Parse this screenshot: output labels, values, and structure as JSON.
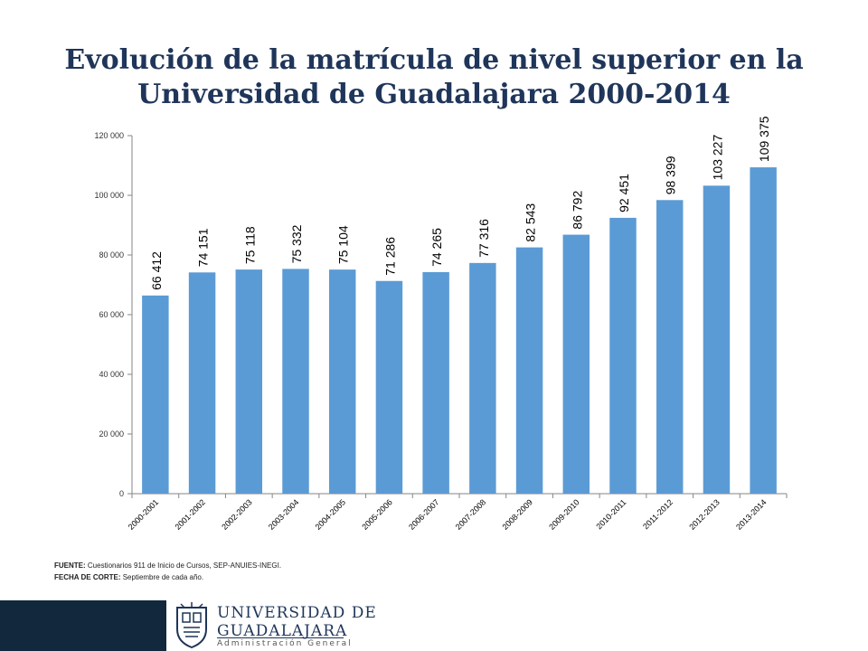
{
  "chart_data": {
    "type": "bar",
    "title": "Evolución de la matrícula de nivel superior en la Universidad de Guadalajara 2000-2014",
    "categories": [
      "2000-2001",
      "2001-2002",
      "2002-2003",
      "2003-2004",
      "2004-2005",
      "2005-2006",
      "2006-2007",
      "2007-2008",
      "2008-2009",
      "2009-2010",
      "2010-2011",
      "2011-2012",
      "2012-2013",
      "2013-2014"
    ],
    "values": [
      66412,
      74151,
      75118,
      75332,
      75104,
      71286,
      74265,
      77316,
      82543,
      86792,
      92451,
      98399,
      103227,
      109375
    ],
    "value_labels": [
      "66 412",
      "74 151",
      "75 118",
      "75 332",
      "75 104",
      "71 286",
      "74 265",
      "77 316",
      "82 543",
      "86 792",
      "92 451",
      "98 399",
      "103 227",
      "109 375"
    ],
    "ylim": [
      0,
      120000
    ],
    "yticks": [
      0,
      20000,
      40000,
      60000,
      80000,
      100000,
      120000
    ],
    "ytick_labels": [
      "0",
      "20 000",
      "40 000",
      "60 000",
      "80 000",
      "100 000",
      "120 000"
    ],
    "xlabel": "",
    "ylabel": "",
    "grid": false,
    "bar_color": "#5b9bd5"
  },
  "source": {
    "fuente_label": "FUENTE:",
    "fuente_text": " Cuestionarios 911 de Inicio de Cursos, SEP-ANUIES-INEGI.",
    "corte_label": "FECHA DE CORTE:",
    "corte_text": " Septiembre de cada año."
  },
  "logo": {
    "line1": "UNIVERSIDAD DE",
    "line2": "GUADALAJARA",
    "line3": "Administración General",
    "icon": "university-seal-icon"
  }
}
